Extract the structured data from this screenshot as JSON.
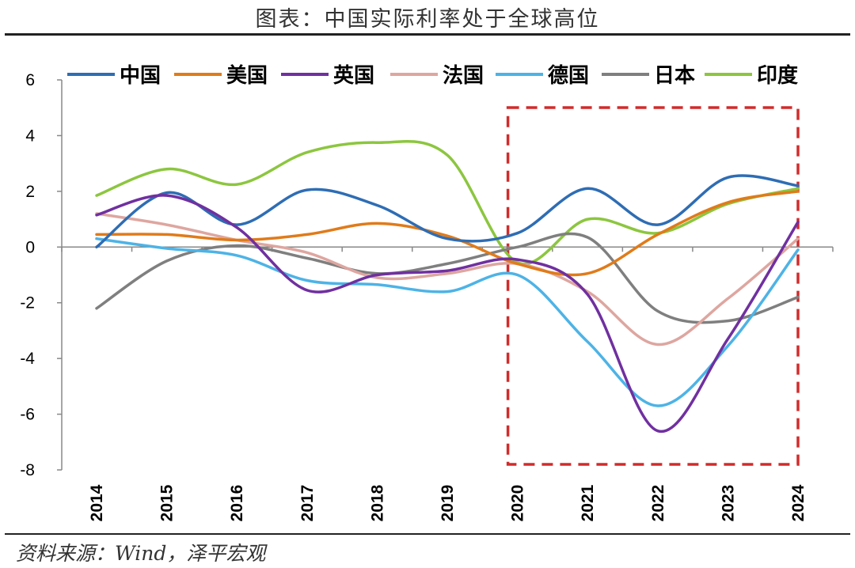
{
  "title": "图表：中国实际利率处于全球高位",
  "source": "资料来源：Wind，泽平宏观",
  "chart_data": {
    "type": "line",
    "title": "图表：中国实际利率处于全球高位",
    "xlabel": "",
    "ylabel": "",
    "x": [
      "2014",
      "2015",
      "2016",
      "2017",
      "2018",
      "2019",
      "2020",
      "2021",
      "2022",
      "2023",
      "2024"
    ],
    "ylim": [
      -8,
      6
    ],
    "yticks": [
      6,
      4,
      2,
      0,
      -2,
      -4,
      -6,
      -8
    ],
    "grid": false,
    "legend_position": "top",
    "highlight_region": {
      "x_from": "2020",
      "x_to": "2024",
      "color": "#d22b2b",
      "style": "dashed"
    },
    "series": [
      {
        "name": "中国",
        "color": "#2e6db4",
        "values": [
          0.0,
          1.95,
          0.8,
          2.05,
          1.5,
          0.3,
          0.5,
          2.1,
          0.8,
          2.5,
          2.2
        ]
      },
      {
        "name": "美国",
        "color": "#e07b1a",
        "values": [
          0.45,
          0.45,
          0.25,
          0.45,
          0.85,
          0.4,
          -0.6,
          -0.95,
          0.45,
          1.6,
          2.0
        ]
      },
      {
        "name": "英国",
        "color": "#7030a0",
        "values": [
          1.15,
          1.85,
          0.7,
          -1.55,
          -1.0,
          -0.85,
          -0.45,
          -1.7,
          -6.6,
          -3.3,
          0.9
        ]
      },
      {
        "name": "法国",
        "color": "#dea6a0",
        "values": [
          1.2,
          0.8,
          0.25,
          -0.2,
          -1.1,
          -0.95,
          -0.6,
          -1.6,
          -3.5,
          -1.85,
          0.3
        ]
      },
      {
        "name": "德国",
        "color": "#4db3e6",
        "values": [
          0.3,
          -0.05,
          -0.3,
          -1.2,
          -1.35,
          -1.6,
          -1.0,
          -3.4,
          -5.7,
          -3.55,
          -0.1
        ]
      },
      {
        "name": "日本",
        "color": "#7f7f7f",
        "values": [
          -2.2,
          -0.5,
          0.05,
          -0.4,
          -0.95,
          -0.6,
          0.0,
          0.35,
          -2.3,
          -2.65,
          -1.8
        ]
      },
      {
        "name": "印度",
        "color": "#8cc63f",
        "values": [
          1.85,
          2.8,
          2.25,
          3.4,
          3.75,
          3.3,
          -0.55,
          1.0,
          0.5,
          1.55,
          2.1
        ]
      }
    ]
  }
}
